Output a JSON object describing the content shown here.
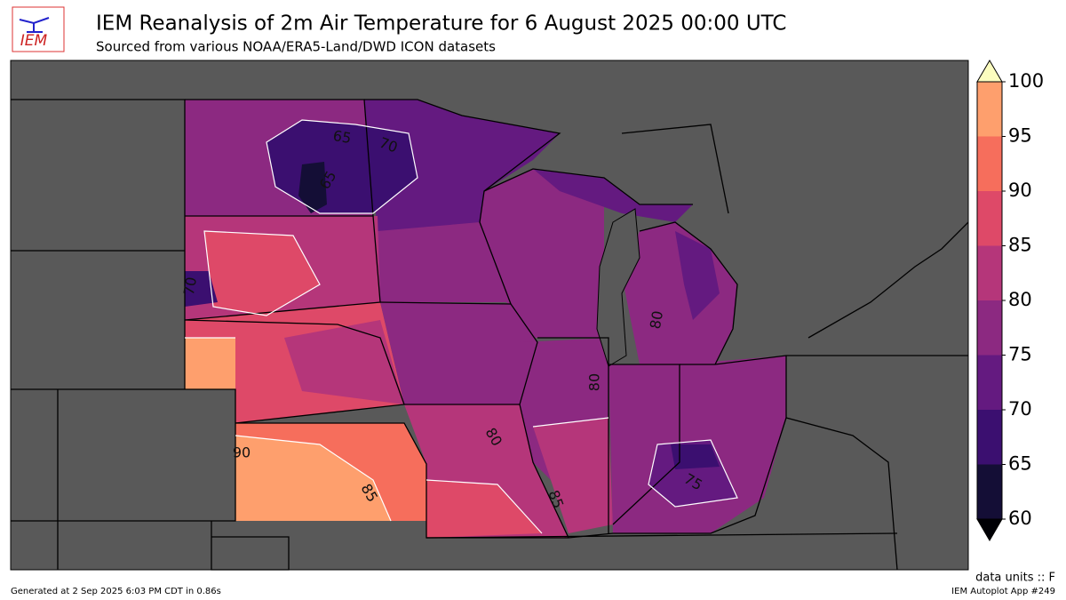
{
  "header": {
    "logo": "IEM",
    "title": "IEM Reanalysis of 2m Air Temperature for 6 August 2025 00:00 UTC",
    "subtitle": "Sourced from various NOAA/ERA5-Land/DWD ICON datasets"
  },
  "colorbar": {
    "ticks": [
      60,
      65,
      70,
      75,
      80,
      85,
      90,
      95,
      100
    ],
    "colors": [
      "#140e36",
      "#3b0f70",
      "#641a80",
      "#8c2981",
      "#b5367a",
      "#de4968",
      "#f66e5c",
      "#fe9f6d",
      "#fecf92"
    ],
    "under_color": "#000004",
    "over_color": "#fcfdbf"
  },
  "contour_labels": [
    65,
    70,
    65,
    70,
    80,
    80,
    80,
    90,
    85,
    85,
    75
  ],
  "units_label": "data units :: F",
  "footer_left": "Generated at 2 Sep 2025 6:03 PM CDT in 0.86s",
  "footer_right": "IEM Autoplot App #249"
}
